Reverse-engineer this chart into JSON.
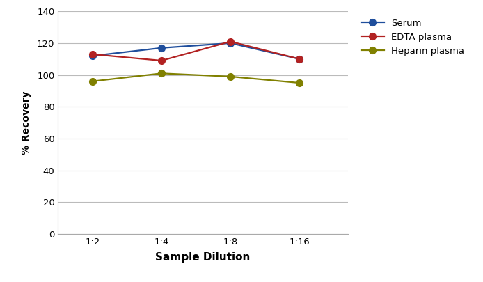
{
  "x_labels": [
    "1:2",
    "1:4",
    "1:8",
    "1:16"
  ],
  "x_positions": [
    0,
    1,
    2,
    3
  ],
  "serum": [
    112,
    117,
    120,
    110
  ],
  "edta_plasma": [
    113,
    109,
    121,
    110
  ],
  "heparin_plasma": [
    96,
    101,
    99,
    95
  ],
  "serum_color": "#1f4e9c",
  "edta_color": "#b22222",
  "heparin_color": "#808000",
  "ylabel": "% Recovery",
  "xlabel": "Sample Dilution",
  "ylim": [
    0,
    140
  ],
  "yticks": [
    0,
    20,
    40,
    60,
    80,
    100,
    120,
    140
  ],
  "legend_labels": [
    "Serum",
    "EDTA plasma",
    "Heparin plasma"
  ],
  "marker": "o",
  "linewidth": 1.6,
  "markersize": 7,
  "bg_color": "#ffffff",
  "grid_color": "#bbbbbb"
}
